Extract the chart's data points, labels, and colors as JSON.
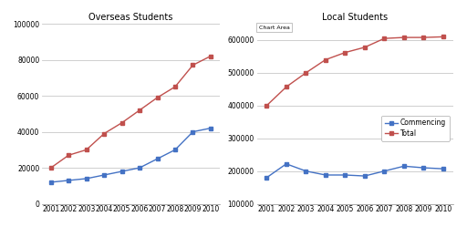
{
  "years": [
    2001,
    2002,
    2003,
    2004,
    2005,
    2006,
    2007,
    2008,
    2009,
    2010
  ],
  "overseas_total": [
    20000,
    27000,
    30000,
    39000,
    45000,
    52000,
    59000,
    65000,
    77000,
    82000
  ],
  "overseas_commencing": [
    12000,
    13000,
    14000,
    16000,
    18000,
    20000,
    25000,
    30000,
    40000,
    42000
  ],
  "local_total": [
    400000,
    457000,
    500000,
    540000,
    562000,
    578000,
    605000,
    608000,
    608000,
    610000
  ],
  "local_commencing": [
    180000,
    222000,
    200000,
    188000,
    188000,
    185000,
    200000,
    215000,
    210000,
    207000
  ],
  "color_total": "#c0504d",
  "color_commencing": "#4472c4",
  "title_overseas": "Overseas Students",
  "title_local": "Local Students",
  "chart_area_label": "Chart Area",
  "legend_commencing": "Commencing",
  "legend_total": "Total",
  "overseas_ylim": [
    0,
    100000
  ],
  "overseas_yticks": [
    0,
    20000,
    40000,
    60000,
    80000,
    100000
  ],
  "local_ylim": [
    100000,
    650000
  ],
  "local_yticks": [
    100000,
    200000,
    300000,
    400000,
    500000,
    600000
  ],
  "bg_color": "#ffffff",
  "plot_bg_color": "#ffffff",
  "grid_color": "#c8c8c8"
}
